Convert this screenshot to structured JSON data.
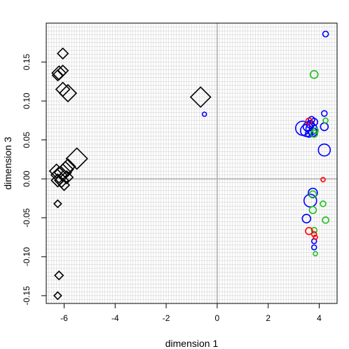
{
  "chart_data": {
    "type": "scatter",
    "title": "",
    "xlabel": "dimension 1",
    "ylabel": "dimension 3",
    "xlim": [
      -6.7,
      4.7
    ],
    "ylim": [
      -0.16,
      0.2
    ],
    "x_ticks": [
      -6,
      -4,
      -2,
      0,
      2,
      4
    ],
    "y_ticks": [
      -0.15,
      -0.1,
      -0.05,
      0.0,
      0.05,
      0.1,
      0.15
    ],
    "x_tick_labels": [
      "-6",
      "-4",
      "-2",
      "0",
      "2",
      "4"
    ],
    "y_tick_labels": [
      "-0.15",
      "-0.10",
      "-0.05",
      "0.00",
      "0.05",
      "0.10",
      "0.15"
    ],
    "grid": true,
    "colors": {
      "black": "#000000",
      "blue": "#0000ff",
      "green": "#1fbf1f",
      "red": "#ff0000",
      "grid": "#cccccc",
      "zero_line": "#bbbbbb"
    },
    "series": [
      {
        "shape": "diamond",
        "color": "black",
        "points": [
          {
            "x": -6.05,
            "y": 0.161,
            "size": 1
          },
          {
            "x": -6.2,
            "y": 0.136,
            "size": 1.3
          },
          {
            "x": -6.05,
            "y": 0.139,
            "size": 1
          },
          {
            "x": -6.25,
            "y": 0.133,
            "size": 1
          },
          {
            "x": -6.05,
            "y": 0.115,
            "size": 1.3
          },
          {
            "x": -5.85,
            "y": 0.11,
            "size": 1.6
          },
          {
            "x": -0.65,
            "y": 0.105,
            "size": 1.9
          },
          {
            "x": -5.5,
            "y": 0.026,
            "size": 2.0
          },
          {
            "x": -5.85,
            "y": 0.016,
            "size": 1.4
          },
          {
            "x": -5.95,
            "y": 0.012,
            "size": 1.5
          },
          {
            "x": -6.05,
            "y": 0.008,
            "size": 1.6
          },
          {
            "x": -6.2,
            "y": 0.005,
            "size": 1.5
          },
          {
            "x": -6.3,
            "y": 0.01,
            "size": 1.3
          },
          {
            "x": -5.9,
            "y": 0.002,
            "size": 1.2
          },
          {
            "x": -6.1,
            "y": -0.002,
            "size": 1.3
          },
          {
            "x": -6.25,
            "y": -0.002,
            "size": 1.2
          },
          {
            "x": -6.0,
            "y": -0.008,
            "size": 1.0
          },
          {
            "x": -6.25,
            "y": -0.032,
            "size": 0.7
          },
          {
            "x": -6.2,
            "y": -0.124,
            "size": 0.8
          },
          {
            "x": -6.25,
            "y": -0.15,
            "size": 0.7
          }
        ]
      },
      {
        "shape": "circle",
        "color": "blue",
        "points": [
          {
            "x": 4.25,
            "y": 0.186,
            "size": 0.8
          },
          {
            "x": -0.5,
            "y": 0.083,
            "size": 0.6
          },
          {
            "x": 4.2,
            "y": 0.084,
            "size": 0.8
          },
          {
            "x": 3.7,
            "y": 0.076,
            "size": 0.9
          },
          {
            "x": 3.8,
            "y": 0.073,
            "size": 1.0
          },
          {
            "x": 3.65,
            "y": 0.07,
            "size": 1.1
          },
          {
            "x": 3.55,
            "y": 0.067,
            "size": 1.3
          },
          {
            "x": 3.7,
            "y": 0.064,
            "size": 1.6
          },
          {
            "x": 3.35,
            "y": 0.065,
            "size": 2.0
          },
          {
            "x": 3.5,
            "y": 0.062,
            "size": 1.7
          },
          {
            "x": 3.75,
            "y": 0.06,
            "size": 1.2
          },
          {
            "x": 3.6,
            "y": 0.058,
            "size": 1.0
          },
          {
            "x": 4.2,
            "y": 0.067,
            "size": 1.1
          },
          {
            "x": 4.2,
            "y": 0.037,
            "size": 1.7
          },
          {
            "x": 3.75,
            "y": -0.018,
            "size": 1.3
          },
          {
            "x": 3.65,
            "y": -0.028,
            "size": 1.8
          },
          {
            "x": 3.5,
            "y": -0.051,
            "size": 1.2
          },
          {
            "x": 3.8,
            "y": -0.08,
            "size": 0.7
          },
          {
            "x": 3.8,
            "y": -0.088,
            "size": 0.7
          }
        ]
      },
      {
        "shape": "circle",
        "color": "green",
        "points": [
          {
            "x": 3.8,
            "y": 0.134,
            "size": 1.1
          },
          {
            "x": 4.25,
            "y": 0.075,
            "size": 0.7
          },
          {
            "x": 3.8,
            "y": 0.058,
            "size": 1.0
          },
          {
            "x": 3.85,
            "y": 0.062,
            "size": 0.8
          },
          {
            "x": 3.75,
            "y": -0.02,
            "size": 1.0
          },
          {
            "x": 3.75,
            "y": -0.04,
            "size": 1.0
          },
          {
            "x": 4.15,
            "y": -0.032,
            "size": 0.8
          },
          {
            "x": 4.25,
            "y": -0.053,
            "size": 0.9
          },
          {
            "x": 3.8,
            "y": -0.066,
            "size": 0.8
          },
          {
            "x": 3.85,
            "y": -0.096,
            "size": 0.6
          }
        ]
      },
      {
        "shape": "circle",
        "color": "red",
        "points": [
          {
            "x": 3.6,
            "y": 0.074,
            "size": 0.9
          },
          {
            "x": 4.15,
            "y": -0.001,
            "size": 0.6
          },
          {
            "x": 3.6,
            "y": -0.067,
            "size": 1.0
          },
          {
            "x": 3.8,
            "y": -0.071,
            "size": 0.7
          },
          {
            "x": 3.85,
            "y": -0.075,
            "size": 0.6
          }
        ]
      }
    ]
  }
}
